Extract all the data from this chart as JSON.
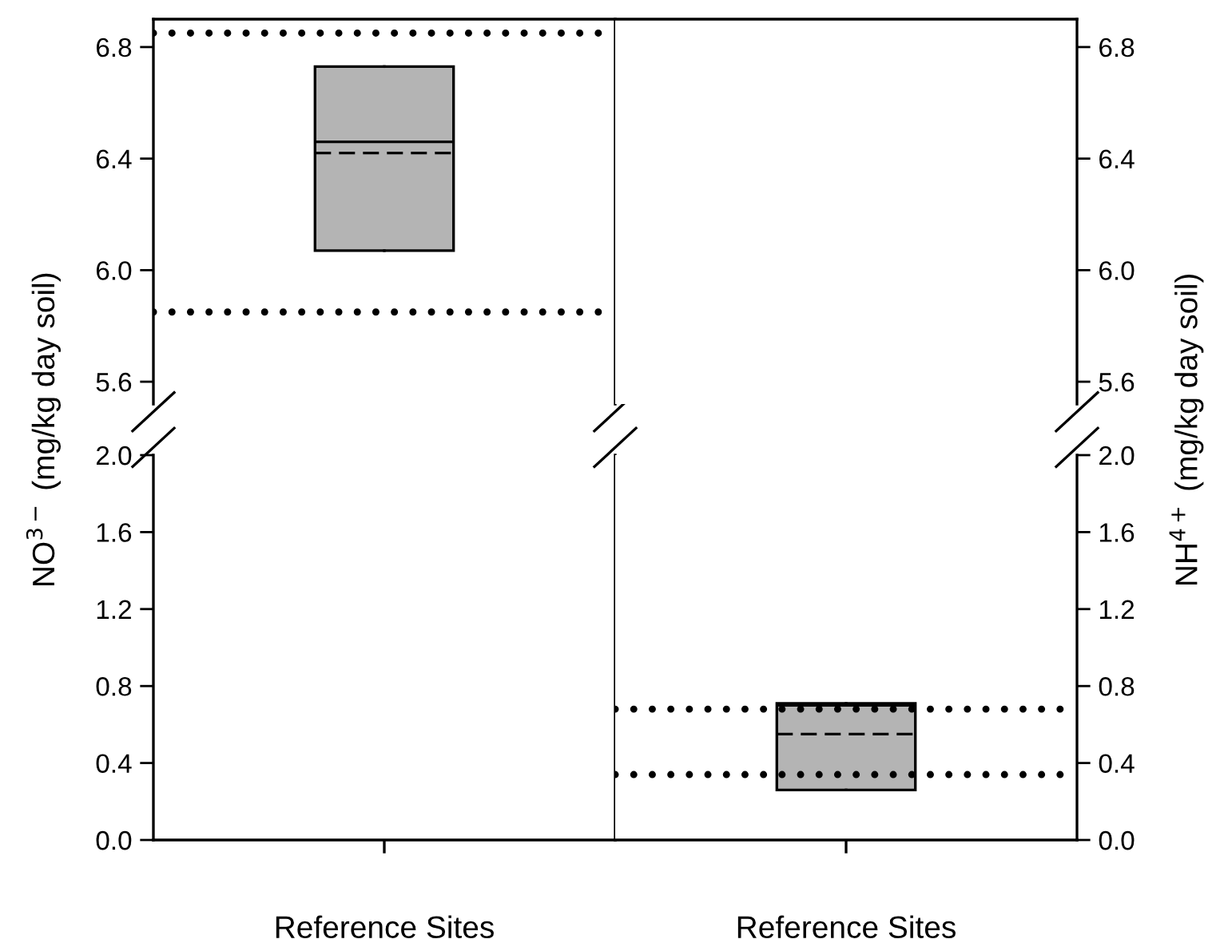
{
  "chart_data": [
    {
      "type": "box",
      "categories": [
        null
      ],
      "tick_labels": "y",
      "boxes": [
        {
          "low": 6.07,
          "q1": 6.07,
          "median": 6.46,
          "q3": 6.73,
          "high": 6.73,
          "mean": 6.42
        }
      ],
      "color": "#b4b4b4",
      "ylim": [
        5.52,
        6.9
      ],
      "yticks": [
        {
          "value": 5.6,
          "label": "5.6"
        },
        {
          "value": 6.0,
          "label": "6.0"
        },
        {
          "value": 6.4,
          "label": "6.4"
        },
        {
          "value": 6.8,
          "label": "6.8"
        }
      ],
      "ref_lines": [
        {
          "axis": "y",
          "value": 6.85,
          "color": "#000000",
          "line_style": "dotted"
        },
        {
          "axis": "y",
          "value": 5.85,
          "color": "#000000",
          "line_style": "dotted"
        }
      ]
    },
    {
      "type": "box",
      "categories": [
        "Reference Sites"
      ],
      "ylabel": "NO$^{3−}$ (mg/kg day soil)",
      "boxes": [
        null
      ],
      "color": "#b4b4b4",
      "ylim": [
        0,
        2.0
      ],
      "yticks": [
        {
          "value": 0,
          "label": "0.0"
        },
        {
          "value": 0.4,
          "label": "0.4"
        },
        {
          "value": 0.8,
          "label": "0.8"
        },
        {
          "value": 1.2,
          "label": "1.2"
        },
        {
          "value": 1.6,
          "label": "1.6"
        },
        {
          "value": 2,
          "label": "2.0"
        }
      ]
    },
    {
      "type": "box",
      "categories": [
        null
      ],
      "tick_labels": "y",
      "series": [
        {
          "axis": "y2",
          "color": "#b4b4b4",
          "boxes": [
            null
          ]
        }
      ],
      "y2lim": [
        5.52,
        6.9
      ],
      "y2ticks": [
        {
          "value": 5.6,
          "label": "5.6"
        },
        {
          "value": 6.0,
          "label": "6.0"
        },
        {
          "value": 6.4,
          "label": "6.4"
        },
        {
          "value": 6.8,
          "label": "6.8"
        }
      ]
    },
    {
      "type": "box",
      "categories": [
        "Reference Sites"
      ],
      "y2label": "NH$^{4+}$ (mg/kg day soil)",
      "series": [
        {
          "axis": "y2",
          "color": "#b4b4b4",
          "boxes": [
            {
              "low": 0.26,
              "q1": 0.26,
              "median": 0.7,
              "q3": 0.71,
              "high": 0.71,
              "mean": 0.55
            }
          ]
        }
      ],
      "y2lim": [
        0,
        2.0
      ],
      "y2ticks": [
        {
          "value": 0,
          "label": "0.0"
        },
        {
          "value": 0.4,
          "label": "0.4"
        },
        {
          "value": 0.8,
          "label": "0.8"
        },
        {
          "value": 1.2,
          "label": "1.2"
        },
        {
          "value": 1.6,
          "label": "1.6"
        },
        {
          "value": 2,
          "label": "2.0"
        }
      ],
      "ref_lines": [
        {
          "axis": "y2",
          "value": 0.68,
          "color": "#000000",
          "line_style": "dotted"
        },
        {
          "axis": "y2",
          "value": 0.34,
          "color": "#000000",
          "line_style": "dotted"
        }
      ]
    }
  ]
}
